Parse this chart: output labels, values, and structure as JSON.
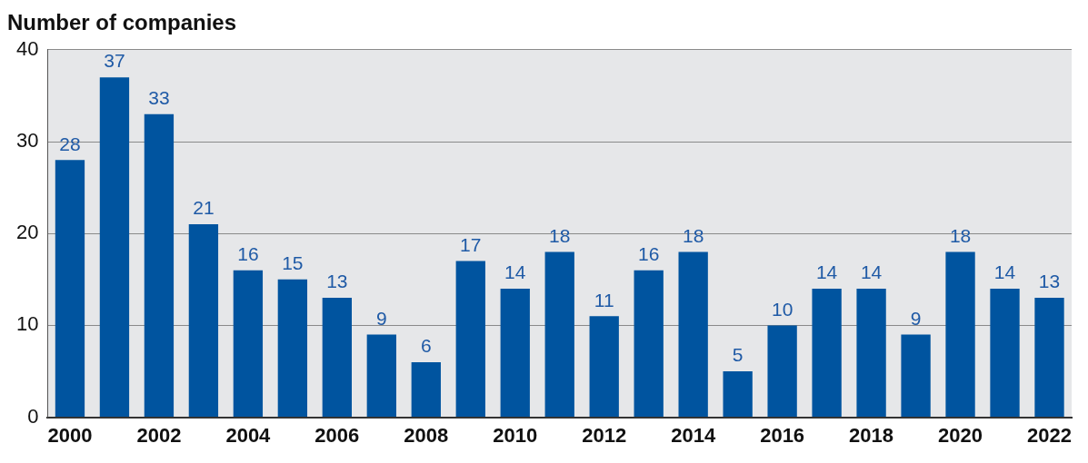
{
  "chart_data": {
    "type": "bar",
    "title": "Number of companies",
    "categories": [
      "2000",
      null,
      "2002",
      null,
      "2004",
      null,
      "2006",
      null,
      "2008",
      null,
      "2010",
      null,
      "2012",
      null,
      "2014",
      null,
      "2016",
      null,
      "2018",
      null,
      "2020",
      null,
      "2022"
    ],
    "values": [
      28,
      37,
      33,
      21,
      16,
      15,
      13,
      9,
      6,
      17,
      14,
      18,
      11,
      16,
      18,
      5,
      10,
      14,
      14,
      9,
      18,
      14,
      13
    ],
    "color": "#00549f",
    "ylim": [
      0,
      40
    ],
    "yticks": [
      0,
      10,
      20,
      30,
      40
    ],
    "grid": "y",
    "data_labels": true,
    "legend": false
  }
}
